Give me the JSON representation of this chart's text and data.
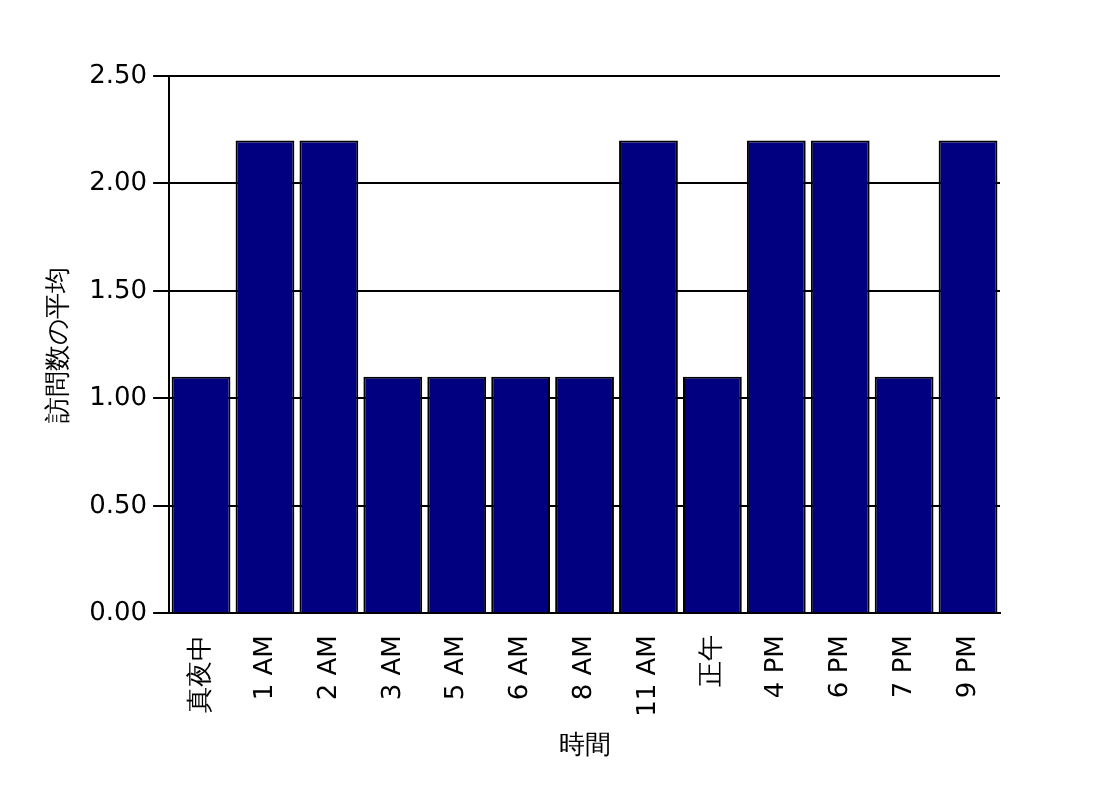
{
  "chart_data": {
    "type": "bar",
    "xlabel": "時間",
    "ylabel": "訪問数の平均",
    "categories": [
      "真夜中",
      "1 AM",
      "2 AM",
      "3 AM",
      "5 AM",
      "6 AM",
      "8 AM",
      "11 AM",
      "正午",
      "4 PM",
      "6 PM",
      "7 PM",
      "9 PM"
    ],
    "values": [
      1.1,
      2.2,
      2.2,
      1.1,
      1.1,
      1.1,
      1.1,
      2.2,
      1.1,
      2.2,
      2.2,
      1.1,
      2.2
    ],
    "color": "#000080",
    "ylim": [
      0,
      2.5
    ],
    "yticks": [
      {
        "value": 0,
        "label": "0.00"
      },
      {
        "value": 0.5,
        "label": "0.50"
      },
      {
        "value": 1,
        "label": "1.00"
      },
      {
        "value": 1.5,
        "label": "1.50"
      },
      {
        "value": 2,
        "label": "2.00"
      },
      {
        "value": 2.5,
        "label": "2.50"
      }
    ],
    "grid": "y"
  }
}
